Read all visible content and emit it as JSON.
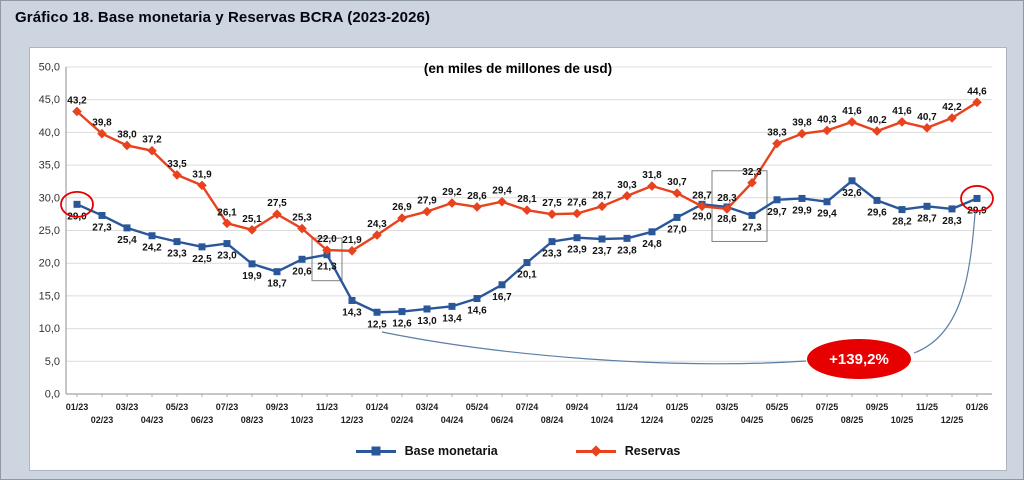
{
  "page": {
    "title": "Gráfico 18. Base monetaria y Reservas BCRA (2023-2026)"
  },
  "chart_data": {
    "type": "line",
    "subtitle": "(en miles de millones de usd)",
    "categories": [
      "01/23",
      "02/23",
      "03/23",
      "04/23",
      "05/23",
      "06/23",
      "07/23",
      "08/23",
      "09/23",
      "10/23",
      "11/23",
      "12/23",
      "01/24",
      "02/24",
      "03/24",
      "04/24",
      "05/24",
      "06/24",
      "07/24",
      "08/24",
      "09/24",
      "10/24",
      "11/24",
      "12/24",
      "01/25",
      "02/25",
      "03/25",
      "04/25",
      "05/25",
      "06/25",
      "07/25",
      "08/25",
      "09/25",
      "10/25",
      "11/25",
      "12/25",
      "01/26"
    ],
    "series": [
      {
        "name": "Base monetaria",
        "color": "#2a5799",
        "marker": "square",
        "label_position": "below",
        "values": [
          29.0,
          27.3,
          25.4,
          24.2,
          23.3,
          22.5,
          23.0,
          19.9,
          18.7,
          20.6,
          21.3,
          14.3,
          12.5,
          12.6,
          13.0,
          13.4,
          14.6,
          16.7,
          20.1,
          23.3,
          23.9,
          23.7,
          23.8,
          24.8,
          27.0,
          29.0,
          28.6,
          27.3,
          29.7,
          29.9,
          29.4,
          32.6,
          29.6,
          28.2,
          28.7,
          28.3,
          29.9
        ]
      },
      {
        "name": "Reservas",
        "color": "#e8431e",
        "marker": "diamond",
        "label_position": "above",
        "values": [
          43.2,
          39.8,
          38.0,
          37.2,
          33.5,
          31.9,
          26.1,
          25.1,
          27.5,
          25.3,
          22.0,
          21.9,
          24.3,
          26.9,
          27.9,
          29.2,
          28.6,
          29.4,
          28.1,
          27.5,
          27.6,
          28.7,
          30.3,
          31.8,
          30.7,
          28.7,
          28.3,
          32.3,
          38.3,
          39.8,
          40.3,
          41.6,
          40.2,
          41.6,
          40.7,
          42.2,
          44.6
        ]
      }
    ],
    "ylim": [
      0,
      50
    ],
    "ytick_step": 5,
    "yticks": [
      "0,0",
      "5,0",
      "10,0",
      "15,0",
      "20,0",
      "25,0",
      "30,0",
      "35,0",
      "40,0",
      "45,0",
      "50,0"
    ],
    "grid": true,
    "legend_position": "bottom",
    "annotations": {
      "circled_points": [
        {
          "series": "Base monetaria",
          "category": "01/23",
          "value": 29.0
        },
        {
          "series": "Base monetaria",
          "category": "01/26",
          "value": 29.9
        }
      ],
      "highlight_boxes": [
        {
          "from": "11/23",
          "to": "11/23"
        },
        {
          "from": "03/25",
          "to": "04/25"
        }
      ],
      "badge": {
        "label": "+139,2%",
        "color": "#e60000",
        "text_color": "#ffffff"
      }
    },
    "colors": {
      "background": "#ccd5e0",
      "plot_background": "#ffffff",
      "gridline": "#dcdcdc",
      "annotation_red": "#e60000"
    }
  }
}
